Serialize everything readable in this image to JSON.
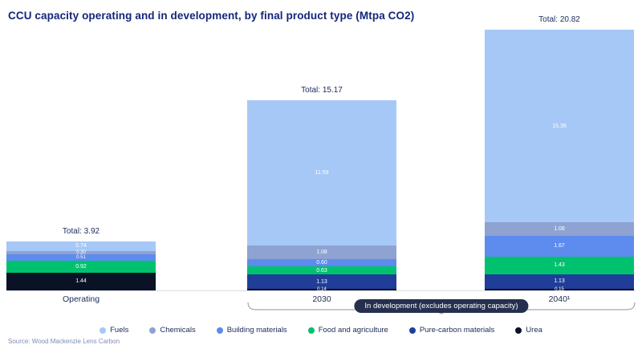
{
  "title": "CCU capacity operating and in development, by final product type (Mtpa CO2)",
  "source": "Source: Wood Mackenzie Lens Carbon",
  "annotation": {
    "in_development_label": "In development (excludes operating capacity)"
  },
  "chart_data": {
    "type": "bar",
    "stacked": true,
    "unit": "Mtpa CO2",
    "title": "CCU capacity operating and in development, by final product type (Mtpa CO2)",
    "categories": [
      "Operating",
      "2030",
      "2040¹"
    ],
    "totals": [
      3.92,
      15.17,
      20.82
    ],
    "colors": {
      "Fuels": "#a6c8f7",
      "Chemicals": "#8ea3d2",
      "Building materials": "#5e8bee",
      "Food and agriculture": "#00c26e",
      "Pure-carbon materials": "#203d99",
      "Urea": "#0a1226"
    },
    "bars": [
      {
        "category": "Operating",
        "total": 3.92,
        "total_label": "Total: 3.92",
        "segments": [
          {
            "product": "Fuels",
            "value": 0.74,
            "label": "0.74"
          },
          {
            "product": "Chemicals",
            "value": 0.3,
            "label": "0.30"
          },
          {
            "product": "Building materials",
            "value": 0.51,
            "label": "0.51"
          },
          {
            "product": "Food and agriculture",
            "value": 0.92,
            "label": "0.92"
          },
          {
            "product": "Urea",
            "value": 1.44,
            "label": "1.44"
          }
        ]
      },
      {
        "category": "2030",
        "total": 15.17,
        "total_label": "Total: 15.17",
        "segments": [
          {
            "product": "Fuels",
            "value": 11.59,
            "label": "11.59"
          },
          {
            "product": "Chemicals",
            "value": 1.08,
            "label": "1.08"
          },
          {
            "product": "Building materials",
            "value": 0.6,
            "label": "0.60"
          },
          {
            "product": "Food and agriculture",
            "value": 0.63,
            "label": "0.63"
          },
          {
            "product": "Pure-carbon materials",
            "value": 1.13,
            "label": "1.13"
          },
          {
            "product": "Urea",
            "value": 0.14,
            "label": "0.14"
          }
        ]
      },
      {
        "category": "2040¹",
        "total": 20.82,
        "total_label": "Total: 20.82",
        "segments": [
          {
            "product": "Fuels",
            "value": 15.36,
            "label": "15.36"
          },
          {
            "product": "Chemicals",
            "value": 1.08,
            "label": "1.08"
          },
          {
            "product": "Building materials",
            "value": 1.67,
            "label": "1.67"
          },
          {
            "product": "Food and agriculture",
            "value": 1.43,
            "label": "1.43"
          },
          {
            "product": "Pure-carbon materials",
            "value": 1.13,
            "label": "1.13"
          },
          {
            "product": "Urea",
            "value": 0.15,
            "label": "0.15"
          }
        ]
      }
    ],
    "legend": [
      {
        "label": "Fuels",
        "color": "#a6c8f7"
      },
      {
        "label": "Chemicals",
        "color": "#8ea3d2"
      },
      {
        "label": "Building materials",
        "color": "#5e8bee"
      },
      {
        "label": "Food and agriculture",
        "color": "#00c26e"
      },
      {
        "label": "Pure-carbon materials",
        "color": "#203d99"
      },
      {
        "label": "Urea",
        "color": "#0a1226"
      }
    ],
    "legend_position": "bottom",
    "grid": false
  }
}
